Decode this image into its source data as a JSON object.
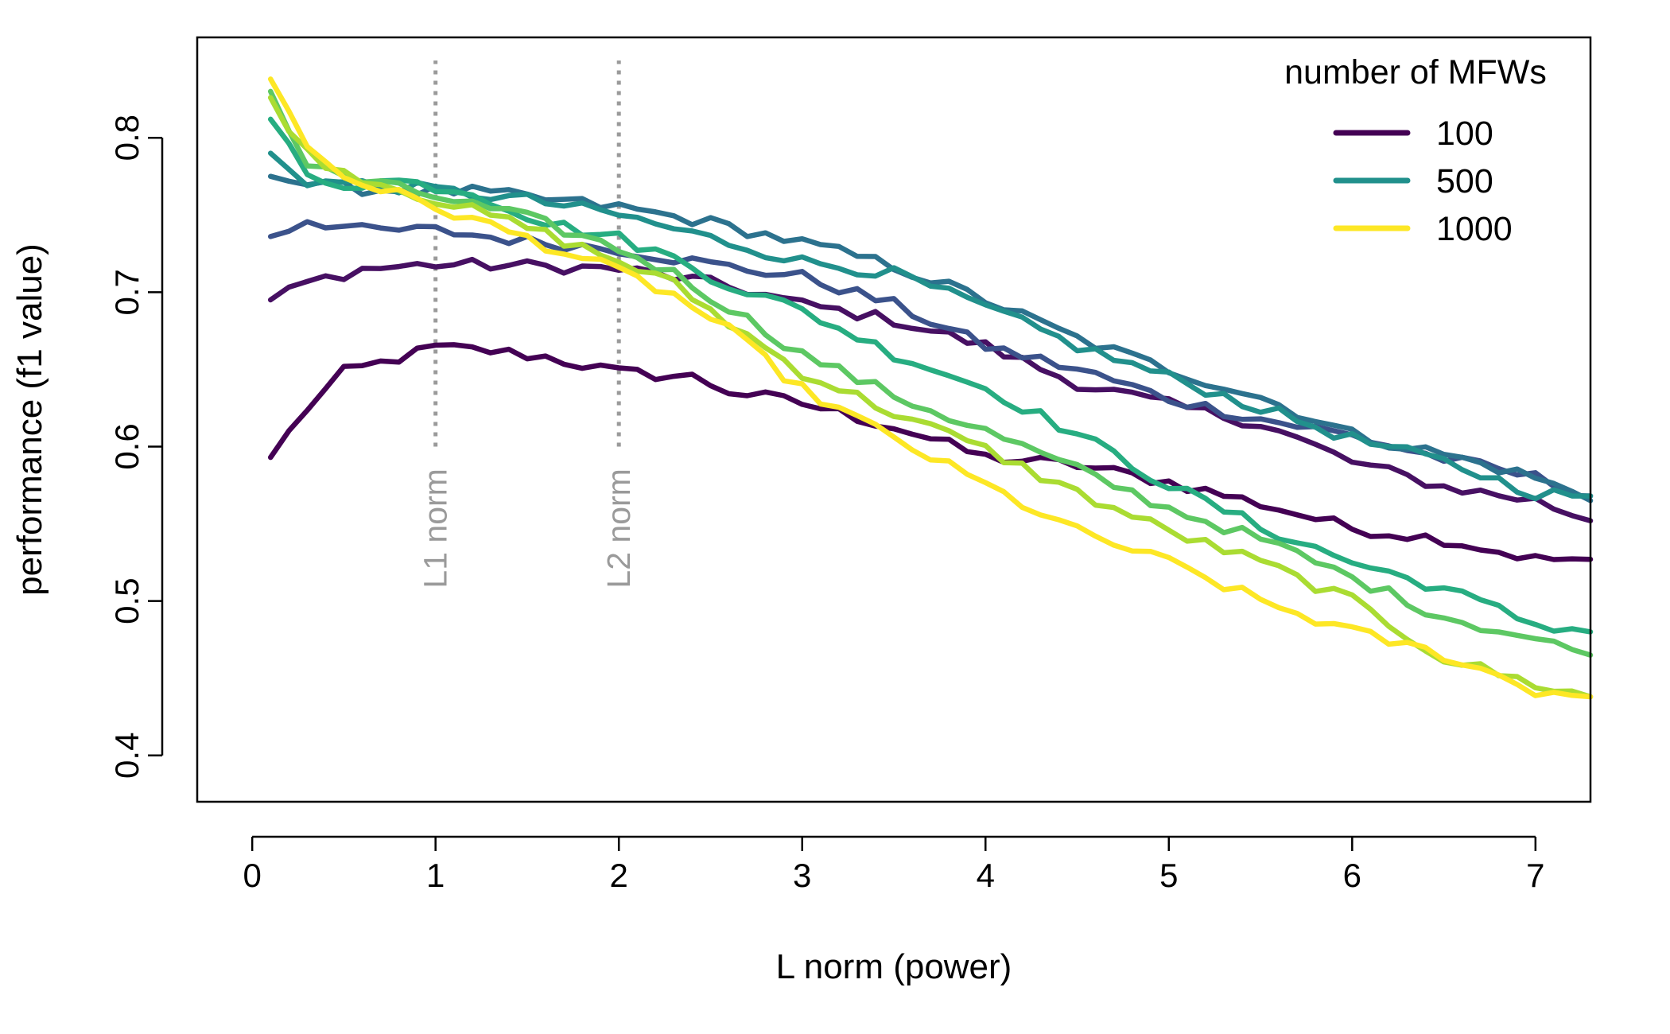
{
  "chart_data": {
    "type": "line",
    "xlabel": "L norm (power)",
    "ylabel": "performance (f1 value)",
    "xlim": [
      -0.3,
      7.3
    ],
    "ylim": [
      0.37,
      0.865
    ],
    "x_ticks": [
      0,
      1,
      2,
      3,
      4,
      5,
      6,
      7
    ],
    "y_ticks": [
      0.4,
      0.5,
      0.6,
      0.7,
      0.8
    ],
    "x_tick_labels": [
      "0",
      "1",
      "2",
      "3",
      "4",
      "5",
      "6",
      "7"
    ],
    "y_tick_labels": [
      "0.4",
      "0.5",
      "0.6",
      "0.7",
      "0.8"
    ],
    "reference_lines": [
      {
        "x": 1,
        "label": "L1 norm",
        "y_range": [
          0.6,
          0.85
        ]
      },
      {
        "x": 2,
        "label": "L2 norm",
        "y_range": [
          0.6,
          0.85
        ]
      }
    ],
    "legend": {
      "title": "number of MFWs",
      "position": "top-right",
      "entries": [
        {
          "label": "100",
          "color": "#440154"
        },
        {
          "label": "500",
          "color": "#21908C"
        },
        {
          "label": "1000",
          "color": "#FDE725"
        }
      ]
    },
    "x_start": 0.1,
    "x_step": 0.1,
    "series": [
      {
        "color": "#440154",
        "anchors": [
          [
            0.1,
            0.593
          ],
          [
            0.3,
            0.625
          ],
          [
            0.5,
            0.648
          ],
          [
            0.7,
            0.654
          ],
          [
            1.0,
            0.664
          ],
          [
            1.3,
            0.662
          ],
          [
            1.6,
            0.658
          ],
          [
            2.0,
            0.648
          ],
          [
            2.4,
            0.645
          ],
          [
            2.6,
            0.636
          ],
          [
            3.0,
            0.628
          ],
          [
            3.5,
            0.613
          ],
          [
            4.0,
            0.593
          ],
          [
            4.5,
            0.588
          ],
          [
            5.0,
            0.577
          ],
          [
            5.5,
            0.563
          ],
          [
            6.0,
            0.547
          ],
          [
            6.5,
            0.54
          ],
          [
            7.0,
            0.527
          ],
          [
            7.3,
            0.527
          ]
        ]
      },
      {
        "color": "#471063",
        "anchors": [
          [
            0.1,
            0.695
          ],
          [
            0.3,
            0.706
          ],
          [
            0.6,
            0.715
          ],
          [
            1.0,
            0.718
          ],
          [
            1.5,
            0.717
          ],
          [
            2.0,
            0.715
          ],
          [
            2.4,
            0.708
          ],
          [
            2.7,
            0.701
          ],
          [
            3.0,
            0.692
          ],
          [
            3.5,
            0.682
          ],
          [
            4.0,
            0.665
          ],
          [
            4.5,
            0.641
          ],
          [
            5.0,
            0.627
          ],
          [
            5.5,
            0.615
          ],
          [
            6.0,
            0.59
          ],
          [
            6.5,
            0.574
          ],
          [
            7.0,
            0.565
          ],
          [
            7.3,
            0.552
          ]
        ]
      },
      {
        "color": "#3B528B",
        "anchors": [
          [
            0.1,
            0.736
          ],
          [
            0.3,
            0.747
          ],
          [
            0.6,
            0.74
          ],
          [
            1.0,
            0.74
          ],
          [
            1.5,
            0.733
          ],
          [
            2.0,
            0.728
          ],
          [
            2.5,
            0.718
          ],
          [
            3.0,
            0.71
          ],
          [
            3.5,
            0.692
          ],
          [
            4.0,
            0.665
          ],
          [
            4.5,
            0.65
          ],
          [
            5.0,
            0.631
          ],
          [
            5.5,
            0.618
          ],
          [
            6.0,
            0.607
          ],
          [
            6.5,
            0.592
          ],
          [
            7.0,
            0.58
          ],
          [
            7.3,
            0.568
          ]
        ]
      },
      {
        "color": "#2C728E",
        "anchors": [
          [
            0.1,
            0.775
          ],
          [
            0.4,
            0.768
          ],
          [
            0.8,
            0.766
          ],
          [
            1.2,
            0.765
          ],
          [
            1.6,
            0.76
          ],
          [
            2.0,
            0.755
          ],
          [
            2.5,
            0.745
          ],
          [
            3.0,
            0.732
          ],
          [
            3.5,
            0.717
          ],
          [
            4.0,
            0.695
          ],
          [
            4.5,
            0.67
          ],
          [
            5.0,
            0.65
          ],
          [
            5.5,
            0.632
          ],
          [
            6.0,
            0.608
          ],
          [
            6.5,
            0.595
          ],
          [
            7.0,
            0.58
          ],
          [
            7.3,
            0.565
          ]
        ]
      },
      {
        "color": "#21908C",
        "anchors": [
          [
            0.1,
            0.79
          ],
          [
            0.3,
            0.772
          ],
          [
            0.6,
            0.77
          ],
          [
            1.0,
            0.766
          ],
          [
            1.5,
            0.76
          ],
          [
            2.0,
            0.75
          ],
          [
            2.5,
            0.735
          ],
          [
            3.0,
            0.72
          ],
          [
            3.5,
            0.712
          ],
          [
            4.0,
            0.69
          ],
          [
            4.5,
            0.665
          ],
          [
            5.0,
            0.645
          ],
          [
            5.5,
            0.625
          ],
          [
            6.0,
            0.605
          ],
          [
            6.5,
            0.59
          ],
          [
            7.0,
            0.57
          ],
          [
            7.3,
            0.568
          ]
        ]
      },
      {
        "color": "#27AD81",
        "anchors": [
          [
            0.1,
            0.812
          ],
          [
            0.3,
            0.775
          ],
          [
            0.5,
            0.77
          ],
          [
            0.8,
            0.772
          ],
          [
            1.2,
            0.765
          ],
          [
            1.6,
            0.745
          ],
          [
            2.0,
            0.735
          ],
          [
            2.3,
            0.722
          ],
          [
            2.6,
            0.705
          ],
          [
            3.0,
            0.688
          ],
          [
            3.5,
            0.66
          ],
          [
            4.0,
            0.638
          ],
          [
            4.5,
            0.608
          ],
          [
            5.0,
            0.575
          ],
          [
            5.5,
            0.548
          ],
          [
            6.0,
            0.525
          ],
          [
            6.5,
            0.508
          ],
          [
            7.0,
            0.485
          ],
          [
            7.3,
            0.48
          ]
        ]
      },
      {
        "color": "#5DC863",
        "anchors": [
          [
            0.1,
            0.83
          ],
          [
            0.3,
            0.782
          ],
          [
            0.6,
            0.772
          ],
          [
            1.0,
            0.762
          ],
          [
            1.5,
            0.748
          ],
          [
            2.0,
            0.728
          ],
          [
            2.3,
            0.712
          ],
          [
            2.6,
            0.69
          ],
          [
            3.0,
            0.66
          ],
          [
            3.5,
            0.633
          ],
          [
            4.0,
            0.61
          ],
          [
            4.5,
            0.585
          ],
          [
            5.0,
            0.56
          ],
          [
            5.5,
            0.54
          ],
          [
            6.0,
            0.515
          ],
          [
            6.5,
            0.49
          ],
          [
            7.0,
            0.475
          ],
          [
            7.3,
            0.465
          ]
        ]
      },
      {
        "color": "#AADC32",
        "anchors": [
          [
            0.1,
            0.826
          ],
          [
            0.3,
            0.79
          ],
          [
            0.5,
            0.778
          ],
          [
            1.0,
            0.76
          ],
          [
            1.5,
            0.742
          ],
          [
            2.0,
            0.72
          ],
          [
            2.3,
            0.705
          ],
          [
            2.6,
            0.68
          ],
          [
            3.0,
            0.648
          ],
          [
            3.5,
            0.622
          ],
          [
            4.0,
            0.598
          ],
          [
            4.5,
            0.57
          ],
          [
            5.0,
            0.545
          ],
          [
            5.5,
            0.525
          ],
          [
            6.0,
            0.5
          ],
          [
            6.5,
            0.463
          ],
          [
            7.0,
            0.446
          ],
          [
            7.3,
            0.438
          ]
        ]
      },
      {
        "color": "#FDE725",
        "anchors": [
          [
            0.1,
            0.838
          ],
          [
            0.3,
            0.795
          ],
          [
            0.5,
            0.775
          ],
          [
            1.0,
            0.755
          ],
          [
            1.5,
            0.735
          ],
          [
            2.0,
            0.713
          ],
          [
            2.3,
            0.698
          ],
          [
            2.6,
            0.675
          ],
          [
            3.0,
            0.637
          ],
          [
            3.5,
            0.605
          ],
          [
            4.0,
            0.575
          ],
          [
            4.5,
            0.545
          ],
          [
            5.0,
            0.525
          ],
          [
            5.5,
            0.5
          ],
          [
            6.0,
            0.48
          ],
          [
            6.5,
            0.465
          ],
          [
            7.0,
            0.442
          ],
          [
            7.3,
            0.438
          ]
        ]
      }
    ]
  }
}
